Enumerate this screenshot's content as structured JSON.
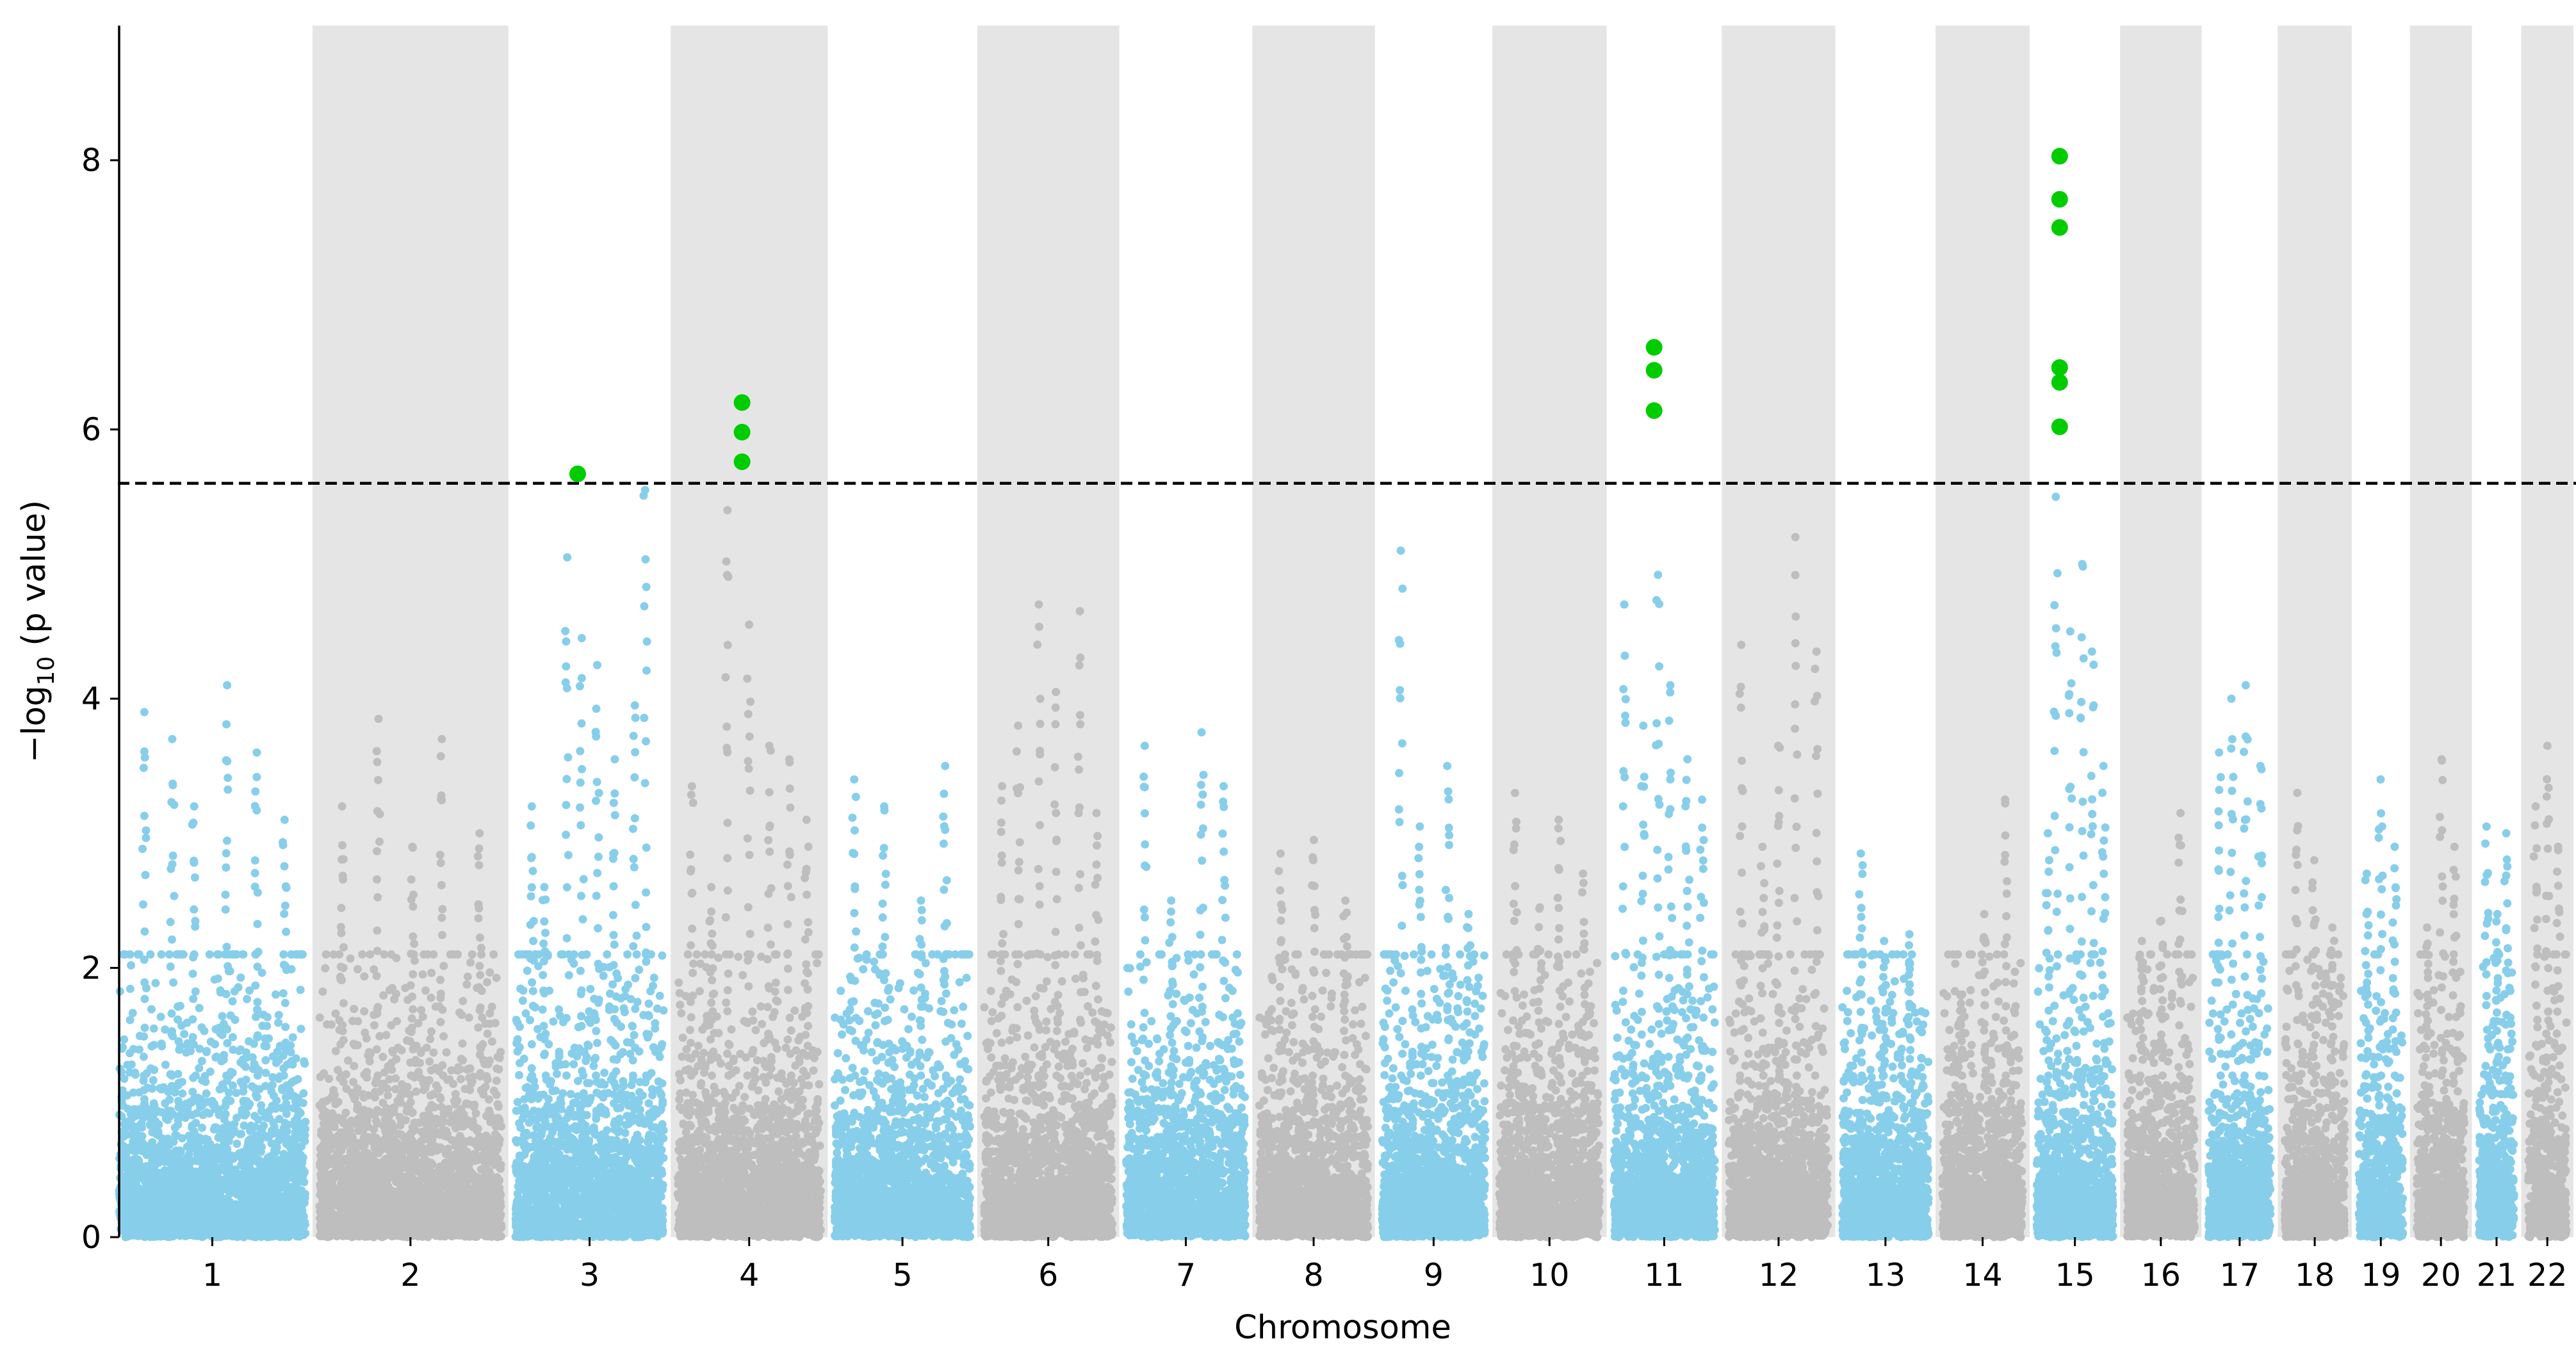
{
  "chart_data": {
    "type": "scatter",
    "subtype": "manhattan",
    "title": "",
    "xlabel": "Chromosome",
    "ylabel_prefix": "−log",
    "ylabel_sub": "10",
    "ylabel_suffix": " (p value)",
    "ylim": [
      0,
      9.0
    ],
    "y_ticks": [
      0,
      2,
      4,
      6,
      8
    ],
    "threshold": 5.6,
    "colors": {
      "odd": "#87ceeb",
      "even": "#bebebe",
      "band": "#e5e5e5",
      "significant": "#00cc00",
      "threshold_line": "#000000"
    },
    "chromosomes": [
      {
        "label": "1",
        "len": 249,
        "peaks": [
          3.9,
          3.7,
          3.2,
          4.1,
          3.6,
          3.1
        ]
      },
      {
        "label": "2",
        "len": 243,
        "peaks": [
          3.2,
          3.85,
          2.9,
          3.7,
          3.0
        ]
      },
      {
        "label": "3",
        "len": 198,
        "peaks": [
          3.2,
          2.6,
          5.05,
          4.45,
          4.25,
          3.55,
          3.95,
          5.55
        ]
      },
      {
        "label": "4",
        "len": 191,
        "peaks": [
          3.35,
          2.6,
          5.4,
          4.55,
          3.65,
          3.55,
          3.1
        ]
      },
      {
        "label": "5",
        "len": 181,
        "peaks": [
          3.4,
          3.2,
          2.5,
          3.5
        ]
      },
      {
        "label": "6",
        "len": 171,
        "peaks": [
          3.35,
          3.8,
          4.7,
          4.05,
          4.65,
          3.15
        ]
      },
      {
        "label": "7",
        "len": 159,
        "peaks": [
          3.65,
          2.5,
          3.75,
          3.35
        ]
      },
      {
        "label": "8",
        "len": 145,
        "peaks": [
          2.85,
          2.95,
          2.5
        ]
      },
      {
        "label": "9",
        "len": 138,
        "peaks": [
          5.1,
          3.05,
          3.5,
          2.4
        ]
      },
      {
        "label": "10",
        "len": 134,
        "peaks": [
          3.3,
          2.45,
          3.1,
          2.7
        ]
      },
      {
        "label": "11",
        "len": 135,
        "peaks": [
          4.7,
          3.8,
          4.92,
          4.1,
          3.55,
          3.25
        ]
      },
      {
        "label": "12",
        "len": 133,
        "peaks": [
          4.4,
          2.9,
          3.65,
          5.2,
          4.35
        ]
      },
      {
        "label": "13",
        "len": 115,
        "peaks": [
          2.85,
          2.2,
          2.25
        ]
      },
      {
        "label": "14",
        "len": 107,
        "peaks": [
          1.8,
          2.4,
          3.25
        ]
      },
      {
        "label": "15",
        "len": 102,
        "peaks": [
          3.0,
          5.5,
          4.5,
          5.0,
          4.35,
          3.5
        ]
      },
      {
        "label": "16",
        "len": 90,
        "peaks": [
          2.2,
          2.35,
          3.15
        ]
      },
      {
        "label": "17",
        "len": 83,
        "peaks": [
          3.6,
          4.0,
          4.1,
          3.5
        ]
      },
      {
        "label": "18",
        "len": 80,
        "peaks": [
          3.3,
          2.8,
          2.3
        ]
      },
      {
        "label": "19",
        "len": 59,
        "peaks": [
          2.7,
          3.4,
          2.9
        ]
      },
      {
        "label": "20",
        "len": 64,
        "peaks": [
          2.3,
          3.55,
          2.9
        ]
      },
      {
        "label": "21",
        "len": 47,
        "peaks": [
          3.05,
          2.4,
          3.0
        ]
      },
      {
        "label": "22",
        "len": 51,
        "peaks": [
          3.2,
          3.65,
          2.9
        ]
      }
    ],
    "significant_points": [
      {
        "chrom": "3",
        "pos": 0.42,
        "y": 5.67
      },
      {
        "chrom": "4",
        "pos": 0.45,
        "y": 6.2
      },
      {
        "chrom": "4",
        "pos": 0.45,
        "y": 5.98
      },
      {
        "chrom": "4",
        "pos": 0.45,
        "y": 5.76
      },
      {
        "chrom": "11",
        "pos": 0.4,
        "y": 6.61
      },
      {
        "chrom": "11",
        "pos": 0.4,
        "y": 6.44
      },
      {
        "chrom": "11",
        "pos": 0.4,
        "y": 6.14
      },
      {
        "chrom": "15",
        "pos": 0.3,
        "y": 8.03
      },
      {
        "chrom": "15",
        "pos": 0.3,
        "y": 7.71
      },
      {
        "chrom": "15",
        "pos": 0.3,
        "y": 7.5
      },
      {
        "chrom": "15",
        "pos": 0.3,
        "y": 6.46
      },
      {
        "chrom": "15",
        "pos": 0.3,
        "y": 6.35
      },
      {
        "chrom": "15",
        "pos": 0.3,
        "y": 6.02
      }
    ]
  }
}
